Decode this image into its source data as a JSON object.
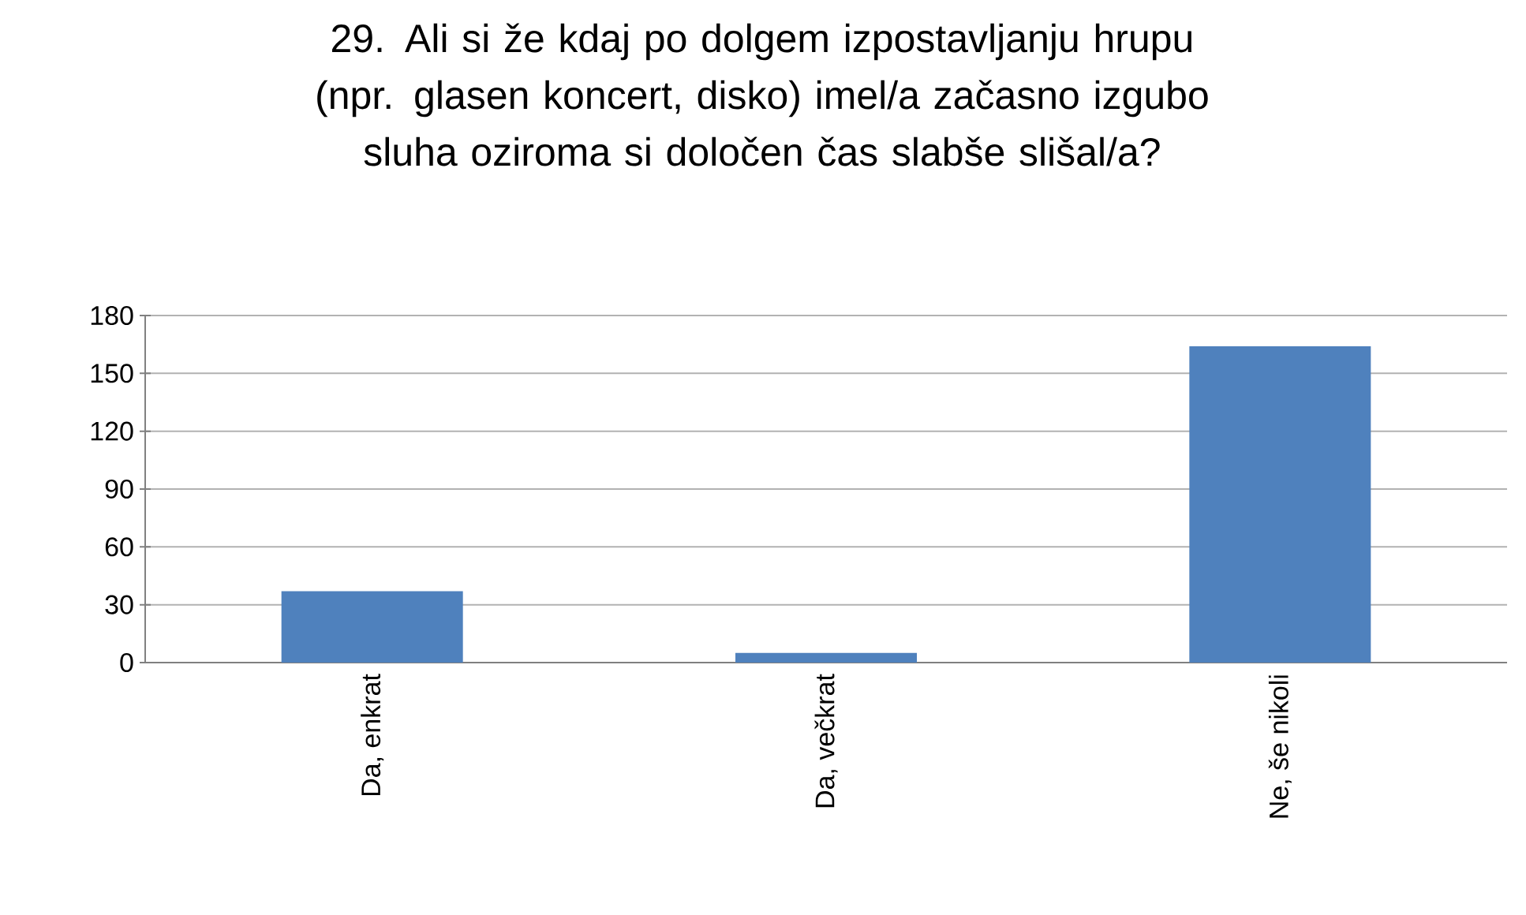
{
  "chart_data": {
    "type": "bar",
    "title": "29. Ali si že kdaj po dolgem izpostavljanju hrupu (npr. glasen koncert, disko) imel/a začasno izgubo sluha oziroma si določen čas slabše slišal/a?",
    "categories": [
      "Da, enkrat",
      "Da, večkrat",
      "Ne, še nikoli"
    ],
    "values": [
      37,
      5,
      164
    ],
    "color": "#4f81bd",
    "ylim": [
      0,
      180
    ],
    "yticks": [
      0,
      30,
      60,
      90,
      120,
      150,
      180
    ],
    "grid": "y"
  }
}
